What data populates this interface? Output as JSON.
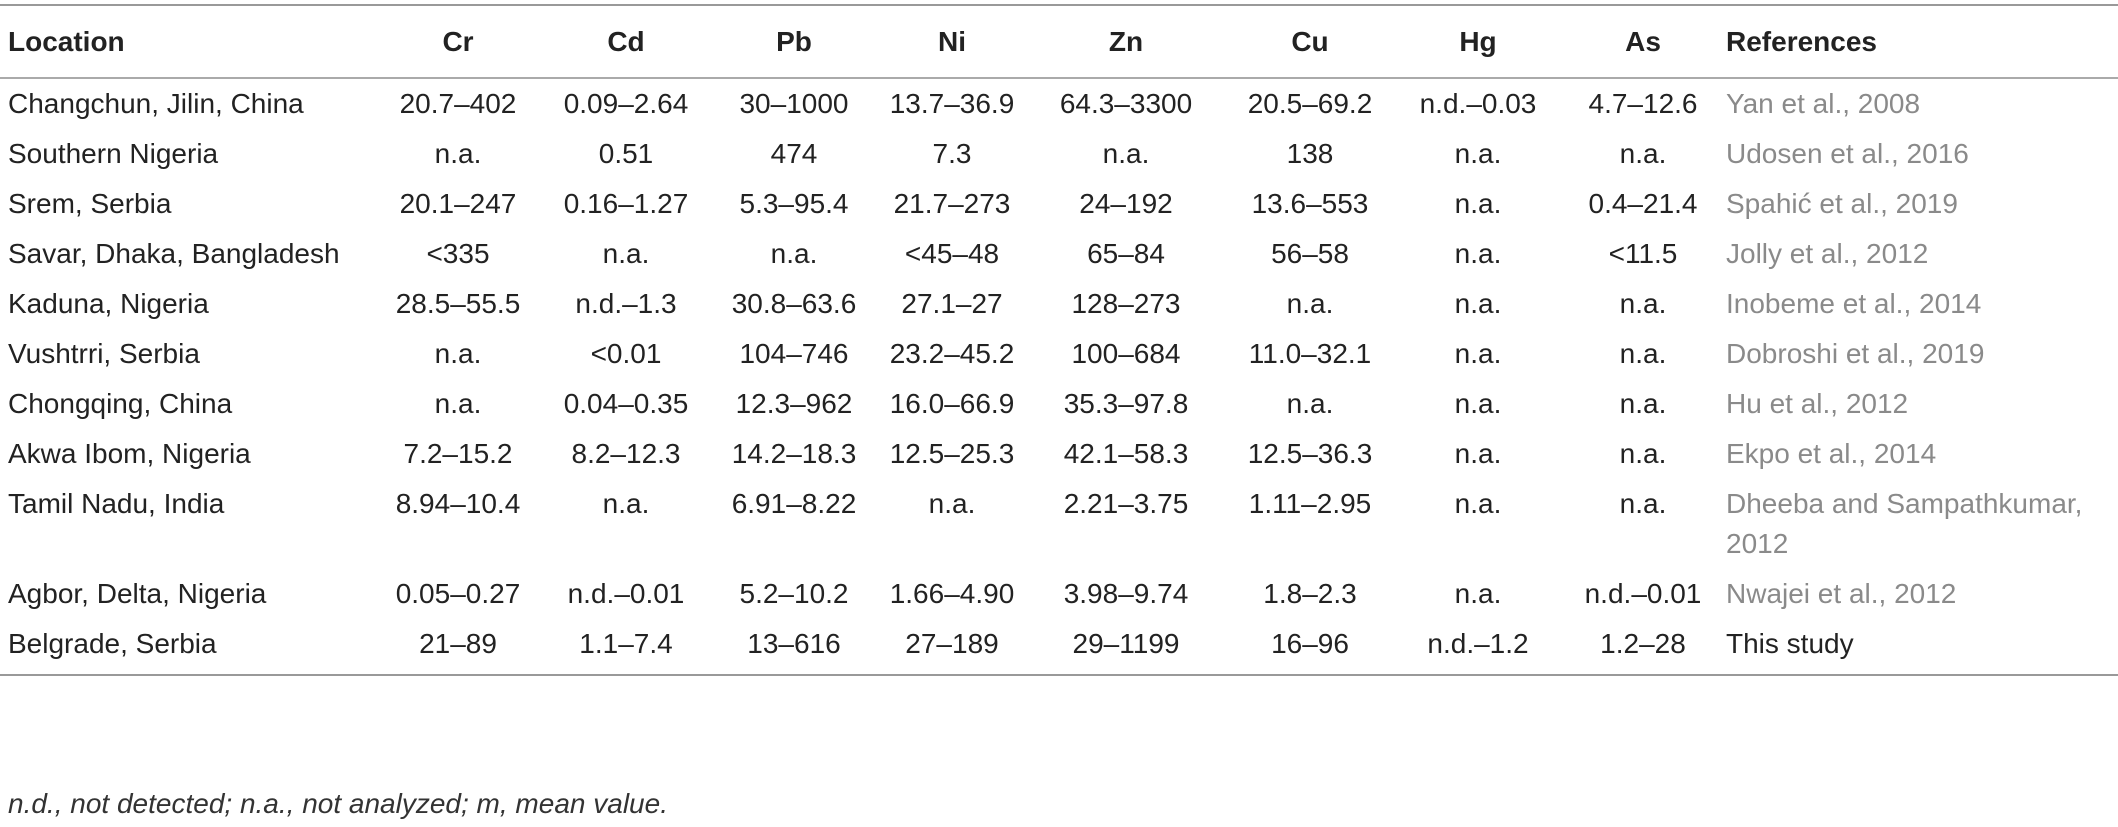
{
  "table": {
    "headers": [
      "Location",
      "Cr",
      "Cd",
      "Pb",
      "Ni",
      "Zn",
      "Cu",
      "Hg",
      "As",
      "References"
    ],
    "rows": [
      {
        "location": "Changchun, Jilin, China",
        "cr": "20.7–402",
        "cd": "0.09–2.64",
        "pb": "30–1000",
        "ni": "13.7–36.9",
        "zn": "64.3–3300",
        "cu": "20.5–69.2",
        "hg": "n.d.–0.03",
        "as": "4.7–12.6",
        "ref": "Yan et al., 2008"
      },
      {
        "location": "Southern Nigeria",
        "cr": "n.a.",
        "cd": "0.51",
        "pb": "474",
        "ni": "7.3",
        "zn": "n.a.",
        "cu": "138",
        "hg": "n.a.",
        "as": "n.a.",
        "ref": "Udosen et al., 2016"
      },
      {
        "location": "Srem, Serbia",
        "cr": "20.1–247",
        "cd": "0.16–1.27",
        "pb": "5.3–95.4",
        "ni": "21.7–273",
        "zn": "24–192",
        "cu": "13.6–553",
        "hg": "n.a.",
        "as": "0.4–21.4",
        "ref": "Spahić et al., 2019"
      },
      {
        "location": "Savar, Dhaka, Bangladesh",
        "cr": "<335",
        "cd": "n.a.",
        "pb": "n.a.",
        "ni": "<45–48",
        "zn": "65–84",
        "cu": "56–58",
        "hg": "n.a.",
        "as": "<11.5",
        "ref": "Jolly et al., 2012"
      },
      {
        "location": "Kaduna, Nigeria",
        "cr": "28.5–55.5",
        "cd": "n.d.–1.3",
        "pb": "30.8–63.6",
        "ni": "27.1–27",
        "zn": "128–273",
        "cu": "n.a.",
        "hg": "n.a.",
        "as": "n.a.",
        "ref": "Inobeme et al., 2014"
      },
      {
        "location": "Vushtrri, Serbia",
        "cr": "n.a.",
        "cd": "<0.01",
        "pb": "104–746",
        "ni": "23.2–45.2",
        "zn": "100–684",
        "cu": "11.0–32.1",
        "hg": "n.a.",
        "as": "n.a.",
        "ref": "Dobroshi et al., 2019"
      },
      {
        "location": "Chongqing, China",
        "cr": "n.a.",
        "cd": "0.04–0.35",
        "pb": "12.3–962",
        "ni": "16.0–66.9",
        "zn": "35.3–97.8",
        "cu": "n.a.",
        "hg": "n.a.",
        "as": "n.a.",
        "ref": "Hu et al., 2012"
      },
      {
        "location": "Akwa Ibom, Nigeria",
        "cr": "7.2–15.2",
        "cd": "8.2–12.3",
        "pb": "14.2–18.3",
        "ni": "12.5–25.3",
        "zn": "42.1–58.3",
        "cu": "12.5–36.3",
        "hg": "n.a.",
        "as": "n.a.",
        "ref": "Ekpo et al., 2014"
      },
      {
        "location": "Tamil Nadu, India",
        "cr": "8.94–10.4",
        "cd": "n.a.",
        "pb": "6.91–8.22",
        "ni": "n.a.",
        "zn": "2.21–3.75",
        "cu": "1.11–2.95",
        "hg": "n.a.",
        "as": "n.a.",
        "ref": "Dheeba and Sampathkumar, 2012"
      },
      {
        "location": "Agbor, Delta, Nigeria",
        "cr": "0.05–0.27",
        "cd": "n.d.–0.01",
        "pb": "5.2–10.2",
        "ni": "1.66–4.90",
        "zn": "3.98–9.74",
        "cu": "1.8–2.3",
        "hg": "n.a.",
        "as": "n.d.–0.01",
        "ref": "Nwajei et al., 2012"
      },
      {
        "location": "Belgrade, Serbia",
        "cr": "21–89",
        "cd": "1.1–7.4",
        "pb": "13–616",
        "ni": "27–189",
        "zn": "29–1199",
        "cu": "16–96",
        "hg": "n.d.–1.2",
        "as": "1.2–28",
        "ref": "This study"
      }
    ]
  },
  "footnote": "n.d., not detected; n.a., not analyzed; m, mean value.",
  "colors": {
    "reference_link": "#8a8a8a",
    "text": "#222222",
    "rule": "#999999"
  }
}
